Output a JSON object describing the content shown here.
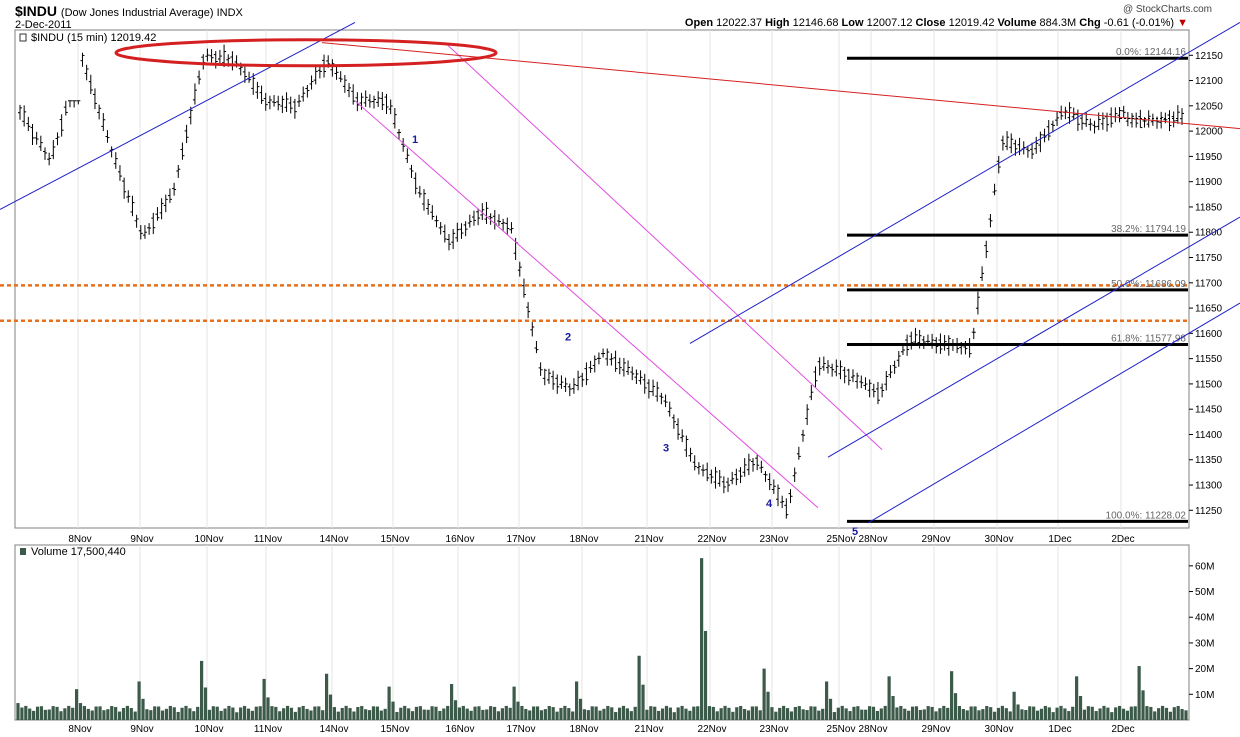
{
  "header": {
    "symbol": "$INDU",
    "description": "(Dow Jones Industrial Average) INDX",
    "date": "2-Dec-2011",
    "watermark": "@ StockCharts.com",
    "open_label": "Open",
    "open": "12022.37",
    "high_label": "High",
    "high": "12146.68",
    "low_label": "Low",
    "low": "12007.12",
    "close_label": "Close",
    "close": "12019.42",
    "volume_label": "Volume",
    "volume": "884.3M",
    "chg_label": "Chg",
    "chg": "-0.61 (-0.01%)",
    "chg_arrow": "▼"
  },
  "price_legend": "$INDU (15 min) 12019.42",
  "volume_legend": "Volume 17,500,440",
  "colors": {
    "price_bars": "#000000",
    "volume_bars": "#3c5a49",
    "channel_magenta": "#e04fe0",
    "channel_blue": "#1f1fc8",
    "resistance_red": "#d42020",
    "support_orange": "#e8701a",
    "fib_lines": "#000000",
    "wave_labels": "#1a1aa0"
  },
  "chart_data": [
    {
      "type": "bar",
      "subtype": "ohlc",
      "title": "$INDU (15 min) 12019.42",
      "categories": [
        "8Nov",
        "9Nov",
        "10Nov",
        "11Nov",
        "14Nov",
        "15Nov",
        "16Nov",
        "17Nov",
        "18Nov",
        "21Nov",
        "22Nov",
        "23Nov",
        "25Nov",
        "28Nov",
        "29Nov",
        "30Nov",
        "1Dec",
        "2Dec"
      ],
      "ylim": [
        11215,
        12200
      ],
      "yticks": [
        11250,
        11300,
        11350,
        11400,
        11450,
        11500,
        11550,
        11600,
        11650,
        11700,
        11750,
        11800,
        11850,
        11900,
        11950,
        12000,
        12050,
        12100,
        12150
      ],
      "series": [
        {
          "name": "$INDU",
          "values": [
            [
              12040,
              12060,
              11920,
              11940
            ],
            [
              11940,
              12060,
              11870,
              12150
            ],
            [
              12150,
              12155,
              11900,
              11960
            ],
            [
              11960,
              11970,
              11740,
              11790
            ],
            [
              11790,
              11900,
              11780,
              11880
            ],
            [
              11880,
              12180,
              11870,
              12150
            ],
            [
              12150,
              12175,
              12120,
              12140
            ],
            [
              12140,
              12150,
              12040,
              12060
            ],
            [
              12060,
              12080,
              12000,
              12050
            ],
            [
              12050,
              12175,
              12040,
              12140
            ],
            [
              12140,
              12150,
              11960,
              12060
            ],
            [
              12060,
              12100,
              12020,
              12060
            ],
            [
              12060,
              12080,
              11840,
              11880
            ],
            [
              11880,
              11900,
              11700,
              11780
            ],
            [
              11780,
              11850,
              11690,
              11840
            ],
            [
              11840,
              11860,
              11790,
              11810
            ],
            [
              11810,
              11820,
              11480,
              11520
            ],
            [
              11520,
              11530,
              11450,
              11490
            ],
            [
              11490,
              11600,
              11470,
              11560
            ],
            [
              11560,
              11570,
              11430,
              11520
            ],
            [
              11520,
              11550,
              11440,
              11470
            ],
            [
              11470,
              11480,
              11320,
              11340
            ],
            [
              11340,
              11360,
              11240,
              11300
            ],
            [
              11300,
              11370,
              11260,
              11350
            ],
            [
              11350,
              11360,
              11228,
              11250
            ],
            [
              11250,
              11560,
              11240,
              11540
            ],
            [
              11540,
              11560,
              11480,
              11520
            ],
            [
              11520,
              11530,
              11450,
              11480
            ],
            [
              11480,
              11620,
              11460,
              11590
            ],
            [
              11590,
              11630,
              11550,
              11580
            ],
            [
              11580,
              11600,
              11540,
              11570
            ],
            [
              11570,
              11990,
              11560,
              11980
            ],
            [
              11980,
              12000,
              11940,
              11960
            ],
            [
              11960,
              12060,
              11950,
              12040
            ],
            [
              12040,
              12060,
              11990,
              12010
            ],
            [
              12010,
              12050,
              11980,
              12040
            ],
            [
              12022,
              12147,
              12007,
              12019
            ],
            [
              12019,
              12060,
              12000,
              12030
            ]
          ]
        }
      ]
    },
    {
      "type": "bar",
      "title": "Volume 17,500,440",
      "categories": [
        "8Nov",
        "9Nov",
        "10Nov",
        "11Nov",
        "14Nov",
        "15Nov",
        "16Nov",
        "17Nov",
        "18Nov",
        "21Nov",
        "22Nov",
        "23Nov",
        "25Nov",
        "28Nov",
        "29Nov",
        "30Nov",
        "1Dec",
        "2Dec"
      ],
      "ylim": [
        0,
        65000000
      ],
      "yticks": [
        "10M",
        "20M",
        "30M",
        "40M",
        "50M",
        "60M"
      ],
      "series": [
        {
          "name": "Volume",
          "spike_values": [
            12000000,
            15000000,
            23000000,
            16000000,
            18000000,
            13000000,
            14000000,
            13000000,
            15000000,
            25000000,
            63000000,
            20000000,
            15000000,
            17000000,
            19000000,
            11000000,
            17000000,
            21000000,
            20000000,
            26000000,
            31000000,
            17000000,
            18000000
          ]
        }
      ]
    }
  ],
  "fibonacci": [
    {
      "label": "0.0%: 12144.16",
      "value": 12144.16
    },
    {
      "label": "38.2%: 11794.19",
      "value": 11794.19
    },
    {
      "label": "50.0%: 11686.09",
      "value": 11686.09
    },
    {
      "label": "61.8%: 11577.98",
      "value": 11577.98
    },
    {
      "label": "100.0%: 11228.02",
      "value": 11228.02
    }
  ],
  "support_lines": [
    11695,
    11625
  ],
  "wave_labels": [
    {
      "label": "1",
      "value": 12000
    },
    {
      "label": "2",
      "value": 11610
    },
    {
      "label": "3",
      "value": 11390
    },
    {
      "label": "4",
      "value": 11280
    },
    {
      "label": "5",
      "value": 11225
    }
  ]
}
